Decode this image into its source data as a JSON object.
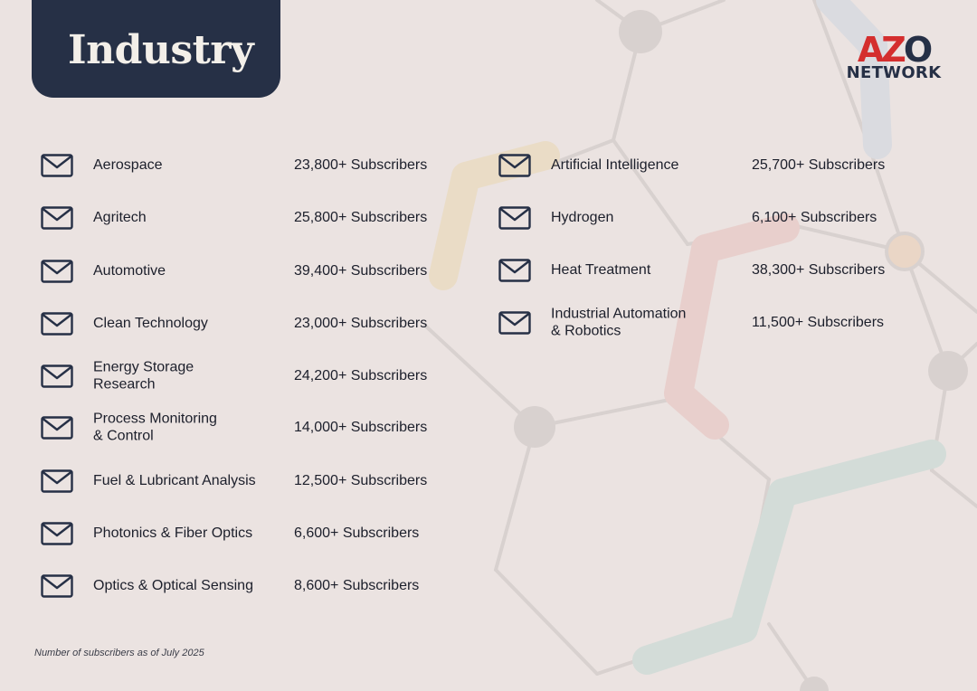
{
  "header": {
    "title": "Industry"
  },
  "logo": {
    "mark": "AZO",
    "sub": "NETWORK"
  },
  "colors": {
    "navy": "#263046",
    "accent_red": "#d42e2e",
    "background": "#ebe3e1"
  },
  "left_column": [
    {
      "name": "Aerospace",
      "subscribers": "23,800+ Subscribers",
      "icon": "envelope-icon"
    },
    {
      "name": "Agritech",
      "subscribers": "25,800+ Subscribers",
      "icon": "envelope-icon"
    },
    {
      "name": "Automotive",
      "subscribers": "39,400+ Subscribers",
      "icon": "envelope-icon"
    },
    {
      "name": "Clean Technology",
      "subscribers": "23,000+ Subscribers",
      "icon": "envelope-icon"
    },
    {
      "name": "Energy Storage\nResearch",
      "subscribers": "24,200+ Subscribers",
      "icon": "envelope-icon"
    },
    {
      "name": "Process Monitoring\n& Control",
      "subscribers": "14,000+ Subscribers",
      "icon": "envelope-icon"
    },
    {
      "name": "Fuel & Lubricant Analysis",
      "subscribers": "12,500+ Subscribers",
      "icon": "envelope-icon"
    },
    {
      "name": "Photonics & Fiber Optics",
      "subscribers": "6,600+ Subscribers",
      "icon": "envelope-icon"
    },
    {
      "name": "Optics & Optical Sensing",
      "subscribers": "8,600+ Subscribers",
      "icon": "envelope-icon"
    }
  ],
  "right_column": [
    {
      "name": "Artificial Intelligence",
      "subscribers": "25,700+ Subscribers",
      "icon": "envelope-icon"
    },
    {
      "name": "Hydrogen",
      "subscribers": "6,100+ Subscribers",
      "icon": "envelope-icon"
    },
    {
      "name": "Heat Treatment",
      "subscribers": "38,300+ Subscribers",
      "icon": "envelope-icon"
    },
    {
      "name": "Industrial Automation\n& Robotics",
      "subscribers": "11,500+ Subscribers",
      "icon": "envelope-icon"
    }
  ],
  "footnote": "Number of subscribers as of July 2025"
}
